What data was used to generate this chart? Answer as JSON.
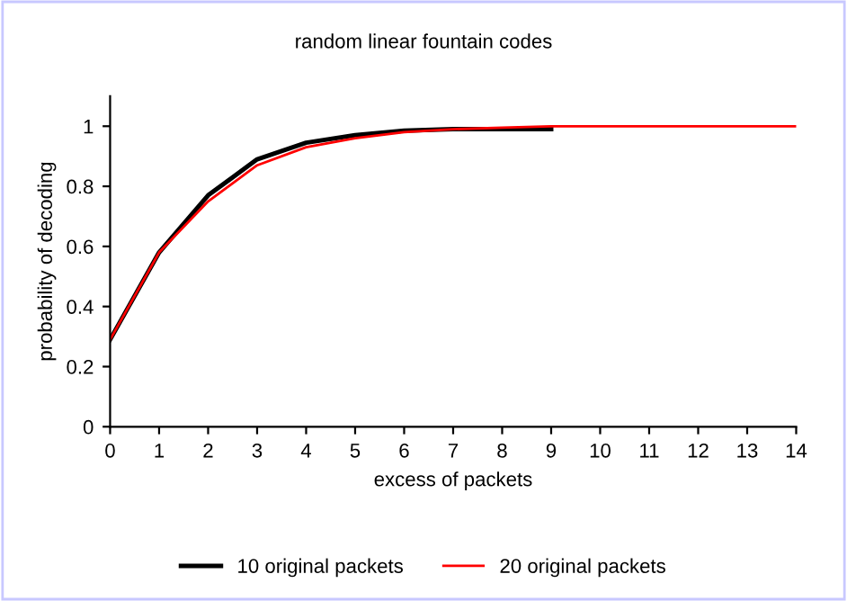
{
  "chart_data": {
    "type": "line",
    "title": "random linear fountain codes",
    "xlabel": "excess of packets",
    "ylabel": "probability of decoding",
    "x": [
      0,
      1,
      2,
      3,
      4,
      5,
      6,
      7,
      8,
      9,
      10,
      11,
      12,
      13,
      14
    ],
    "series": [
      {
        "name": "10 original packets",
        "color": "#000000",
        "values": [
          0.29,
          0.58,
          0.77,
          0.89,
          0.945,
          0.97,
          0.985,
          0.99,
          0.99,
          0.99,
          null,
          null,
          null,
          null,
          null
        ]
      },
      {
        "name": "20 original packets",
        "color": "#ff0000",
        "values": [
          0.29,
          0.58,
          0.75,
          0.87,
          0.93,
          0.96,
          0.98,
          0.99,
          0.995,
          1,
          1,
          1,
          1,
          1,
          1
        ]
      }
    ],
    "xlim": [
      0,
      14
    ],
    "xticks": [
      0,
      1,
      2,
      3,
      4,
      5,
      6,
      7,
      8,
      9,
      10,
      11,
      12,
      13,
      14
    ],
    "ylim": [
      0,
      1.1
    ],
    "yticks": [
      0,
      0.2,
      0.4,
      0.6,
      0.8,
      1
    ],
    "grid": false,
    "legend": "bottom",
    "marker": "none",
    "line_style": "solid"
  }
}
